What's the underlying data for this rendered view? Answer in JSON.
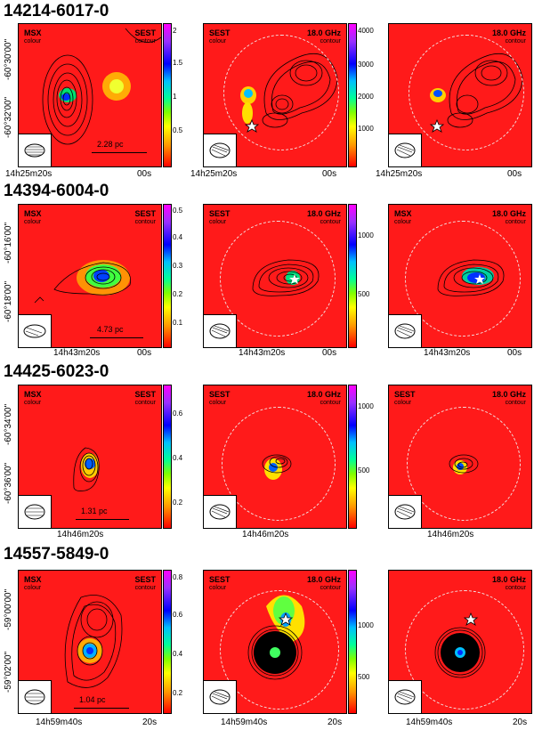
{
  "rows": [
    {
      "title": "14214-6017-0",
      "ra_labels": [
        "14h25m20s",
        "00s"
      ],
      "dec_labels": [
        "-60°30'00\"",
        "-60°32'00\""
      ],
      "scale_bar": "2.28 pc",
      "colorbar1": [
        "2",
        "1.5",
        "1",
        "0.5"
      ],
      "colorbar2": [
        "4000",
        "3000",
        "2000",
        "1000"
      ]
    },
    {
      "title": "14394-6004-0",
      "ra_labels": [
        "14h43m20s",
        "00s"
      ],
      "dec_labels": [
        "-60°16'00\"",
        "-60°18'00\""
      ],
      "scale_bar": "4.73 pc",
      "colorbar1": [
        "0.5",
        "0.4",
        "0.3",
        "0.2",
        "0.1"
      ],
      "colorbar2": [
        "1000",
        "500"
      ]
    },
    {
      "title": "14425-6023-0",
      "ra_labels": [
        "14h46m20s"
      ],
      "dec_labels": [
        "-60°34'00\"",
        "-60°36'00\""
      ],
      "scale_bar": "1.31 pc",
      "colorbar1": [
        "0.6",
        "0.4",
        "0.2"
      ],
      "colorbar2": [
        "1000",
        "500"
      ]
    },
    {
      "title": "14557-5849-0",
      "ra_labels": [
        "14h59m40s",
        "20s"
      ],
      "dec_labels": [
        "-59°00'00\"",
        "-59°02'00\""
      ],
      "scale_bar": "1.04 pc",
      "colorbar1": [
        "0.8",
        "0.6",
        "0.4",
        "0.2"
      ],
      "colorbar2": [
        "1000",
        "500"
      ]
    }
  ],
  "labels": {
    "msx": "MSX",
    "sest": "SEST",
    "colour": "colour",
    "contour": "contour",
    "freq": "18.0 GHz"
  }
}
